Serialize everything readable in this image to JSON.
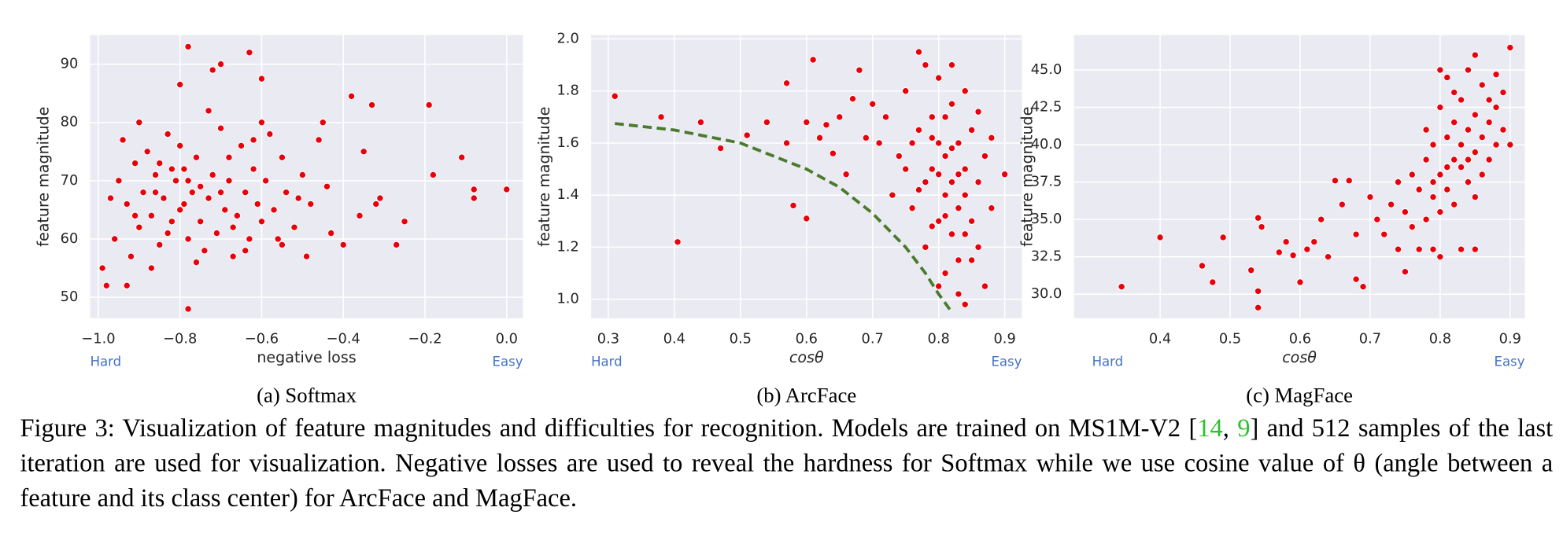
{
  "chart_data": [
    {
      "type": "scatter",
      "caption": "(a) Softmax",
      "xlabel": "negative loss",
      "ylabel": "feature magnitude",
      "annotations": [
        "Hard",
        "Easy"
      ],
      "xlim": [
        -1.02,
        0.04
      ],
      "ylim": [
        46.4,
        95
      ],
      "xticks": [
        {
          "value": -1.0,
          "label": "−1.0"
        },
        {
          "value": -0.8,
          "label": "−0.8"
        },
        {
          "value": -0.6,
          "label": "−0.6"
        },
        {
          "value": -0.4,
          "label": "−0.4"
        },
        {
          "value": -0.2,
          "label": "−0.2"
        },
        {
          "value": 0.0,
          "label": "0.0"
        }
      ],
      "yticks": [
        50,
        60,
        70,
        80,
        90
      ],
      "grid": true,
      "series": [
        {
          "color": "#e8000b",
          "x": [
            -0.78,
            -0.63,
            -0.7,
            -0.72,
            -0.8,
            -0.6,
            -0.38,
            -0.33,
            -0.19,
            -0.11,
            -0.08,
            -0.08,
            0,
            -0.18,
            -0.27,
            -0.25,
            -0.32,
            -0.31,
            -0.78,
            -0.98,
            -0.93,
            -0.99,
            -0.36,
            -0.4,
            -0.35,
            -0.43,
            -0.49,
            -0.45,
            -0.95,
            -0.93,
            -0.91,
            -0.9,
            -0.89,
            -0.88,
            -0.87,
            -0.86,
            -0.85,
            -0.84,
            -0.83,
            -0.82,
            -0.81,
            -0.8,
            -0.79,
            -0.78,
            -0.77,
            -0.76,
            -0.75,
            -0.74,
            -0.73,
            -0.72,
            -0.71,
            -0.7,
            -0.69,
            -0.68,
            -0.67,
            -0.66,
            -0.65,
            -0.64,
            -0.63,
            -0.62,
            -0.61,
            -0.6,
            -0.59,
            -0.58,
            -0.57,
            -0.56,
            -0.55,
            -0.54,
            -0.52,
            -0.5,
            -0.48,
            -0.46,
            -0.44,
            -0.94,
            -0.96,
            -0.92,
            -0.9,
            -0.87,
            -0.85,
            -0.83,
            -0.8,
            -0.78,
            -0.76,
            -0.73,
            -0.7,
            -0.67,
            -0.64,
            -0.62,
            -0.97,
            -0.91,
            -0.86,
            -0.82,
            -0.79,
            -0.75,
            -0.68,
            -0.6,
            -0.55,
            -0.51
          ],
          "values": [
            93,
            92,
            90,
            89,
            86.5,
            87.5,
            84.5,
            83,
            83,
            74,
            68.5,
            67,
            68.5,
            71,
            59,
            63,
            66,
            67,
            48,
            52,
            52,
            55,
            64,
            59,
            75,
            61,
            57,
            80,
            70,
            66,
            73,
            62,
            68,
            75,
            64,
            71,
            59,
            67,
            78,
            63,
            70,
            65,
            72,
            60,
            68,
            74,
            63,
            58,
            67,
            71,
            61,
            79,
            65,
            70,
            57,
            64,
            76,
            68,
            60,
            72,
            66,
            63,
            70,
            78,
            65,
            60,
            74,
            68,
            62,
            71,
            66,
            77,
            69,
            77,
            60,
            57,
            80,
            55,
            73,
            61,
            76,
            70,
            56,
            82,
            68,
            62,
            58,
            77,
            67,
            64,
            68,
            72,
            66,
            69,
            74,
            80,
            59,
            67
          ]
        }
      ]
    },
    {
      "type": "scatter",
      "caption": "(b) ArcFace",
      "xlabel": "cosθ",
      "ylabel": "feature magnitude",
      "annotations": [
        "Hard",
        "Easy"
      ],
      "xlim": [
        0.274,
        0.926
      ],
      "ylim": [
        0.927,
        2.015
      ],
      "xticks": [
        0.3,
        0.4,
        0.5,
        0.6,
        0.7,
        0.8,
        0.9
      ],
      "yticks": [
        {
          "value": 1.0,
          "label": "1.0"
        },
        1.2,
        1.4,
        1.6,
        1.8,
        {
          "value": 2.0,
          "label": "2.0"
        }
      ],
      "grid": true,
      "series": [
        {
          "color": "#e8000b",
          "x": [
            0.31,
            0.38,
            0.405,
            0.44,
            0.47,
            0.51,
            0.54,
            0.57,
            0.58,
            0.6,
            0.6,
            0.61,
            0.57,
            0.62,
            0.63,
            0.64,
            0.66,
            0.67,
            0.68,
            0.69,
            0.65,
            0.74,
            0.75,
            0.76,
            0.77,
            0.77,
            0.78,
            0.78,
            0.79,
            0.79,
            0.8,
            0.8,
            0.8,
            0.81,
            0.81,
            0.81,
            0.82,
            0.82,
            0.82,
            0.83,
            0.83,
            0.83,
            0.84,
            0.84,
            0.84,
            0.85,
            0.85,
            0.86,
            0.86,
            0.87,
            0.87,
            0.88,
            0.88,
            0.9,
            0.72,
            0.73,
            0.76,
            0.78,
            0.79,
            0.8,
            0.81,
            0.82,
            0.83,
            0.84,
            0.85,
            0.86,
            0.75,
            0.77,
            0.79,
            0.8,
            0.81,
            0.82,
            0.83,
            0.84,
            0.71,
            0.7
          ],
          "values": [
            1.78,
            1.7,
            1.22,
            1.68,
            1.58,
            1.63,
            1.68,
            1.83,
            1.36,
            1.31,
            1.68,
            1.92,
            1.6,
            1.62,
            1.67,
            1.56,
            1.48,
            1.77,
            1.88,
            1.62,
            1.7,
            1.55,
            1.8,
            1.35,
            1.65,
            1.95,
            1.45,
            1.2,
            1.7,
            1.5,
            1.3,
            1.6,
            1.85,
            1.4,
            1.1,
            1.55,
            1.75,
            1.25,
            1.45,
            1.6,
            1.15,
            1.35,
            1.5,
            1.8,
            0.98,
            1.3,
            1.65,
            1.45,
            1.2,
            1.55,
            1.05,
            1.35,
            1.62,
            1.48,
            1.7,
            1.4,
            1.6,
            1.9,
            1.28,
            1.05,
            1.7,
            1.9,
            1.02,
            1.25,
            1.15,
            1.72,
            1.5,
            1.42,
            1.62,
            1.48,
            1.32,
            1.58,
            1.48,
            1.4,
            1.6,
            1.75
          ]
        },
        {
          "type": "line",
          "color": "#4a7a2c",
          "style": "dashed",
          "x": [
            0.31,
            0.4,
            0.5,
            0.6,
            0.65,
            0.7,
            0.75,
            0.78,
            0.8,
            0.82
          ],
          "values": [
            1.675,
            1.65,
            1.6,
            1.5,
            1.43,
            1.33,
            1.2,
            1.1,
            1.02,
            0.95
          ]
        }
      ]
    },
    {
      "type": "scatter",
      "caption": "(c) MagFace",
      "xlabel": "cosθ",
      "ylabel": "feature magnitude",
      "annotations": [
        "Hard",
        "Easy"
      ],
      "xlim": [
        0.277,
        0.921
      ],
      "ylim": [
        28.39,
        47.34
      ],
      "xticks": [
        0.4,
        0.5,
        0.6,
        0.7,
        0.8,
        0.9
      ],
      "yticks": [
        {
          "value": 30.0,
          "label": "30.0"
        },
        32.5,
        {
          "value": 35.0,
          "label": "35.0"
        },
        37.5,
        {
          "value": 40.0,
          "label": "40.0"
        },
        42.5,
        {
          "value": 45.0,
          "label": "45.0"
        }
      ],
      "grid": true,
      "series": [
        {
          "color": "#e8000b",
          "x": [
            0.345,
            0.4,
            0.46,
            0.475,
            0.49,
            0.53,
            0.54,
            0.54,
            0.54,
            0.545,
            0.57,
            0.58,
            0.59,
            0.6,
            0.61,
            0.62,
            0.63,
            0.64,
            0.65,
            0.66,
            0.67,
            0.68,
            0.68,
            0.69,
            0.9,
            0.85,
            0.88,
            0.72,
            0.73,
            0.74,
            0.75,
            0.76,
            0.76,
            0.77,
            0.78,
            0.78,
            0.79,
            0.79,
            0.8,
            0.8,
            0.8,
            0.81,
            0.81,
            0.81,
            0.82,
            0.82,
            0.82,
            0.83,
            0.83,
            0.83,
            0.84,
            0.84,
            0.84,
            0.85,
            0.85,
            0.85,
            0.86,
            0.86,
            0.86,
            0.87,
            0.87,
            0.88,
            0.88,
            0.89,
            0.9,
            0.74,
            0.77,
            0.79,
            0.8,
            0.83,
            0.85,
            0.71,
            0.7,
            0.75,
            0.78,
            0.8,
            0.82,
            0.87,
            0.89,
            0.84,
            0.81,
            0.79
          ],
          "values": [
            30.5,
            33.8,
            31.9,
            30.8,
            33.8,
            31.6,
            35.1,
            30.2,
            29.1,
            34.5,
            32.8,
            33.5,
            32.6,
            30.8,
            33,
            33.5,
            35,
            32.5,
            37.6,
            36,
            37.6,
            31,
            34,
            30.5,
            46.5,
            46,
            44.7,
            34,
            36,
            33,
            35.5,
            38,
            34.5,
            37,
            39,
            35,
            36.5,
            40,
            38,
            42.5,
            35.5,
            37,
            40.5,
            44.5,
            39,
            36,
            41.5,
            38.5,
            43,
            40,
            37.5,
            41,
            45,
            39.5,
            42,
            36.5,
            40.5,
            44,
            38,
            41.5,
            39,
            42.5,
            40,
            41,
            40,
            37.5,
            33,
            33,
            32.5,
            33,
            33,
            35,
            36.5,
            31.5,
            41,
            45,
            43.5,
            43,
            43.5,
            39,
            38.5,
            37.5
          ]
        }
      ]
    }
  ],
  "caption": {
    "before": "Figure 3: Visualization of feature magnitudes and difficulties for recognition. Models are trained on MS1M-V2 [",
    "ref1": "14",
    "sep": ", ",
    "ref2": "9",
    "after": "] and 512 samples of the last iteration are used for visualization. Negative losses are used to reveal the hardness for Softmax while we use cosine value of θ (angle between a feature and its class center) for ArcFace and MagFace."
  }
}
